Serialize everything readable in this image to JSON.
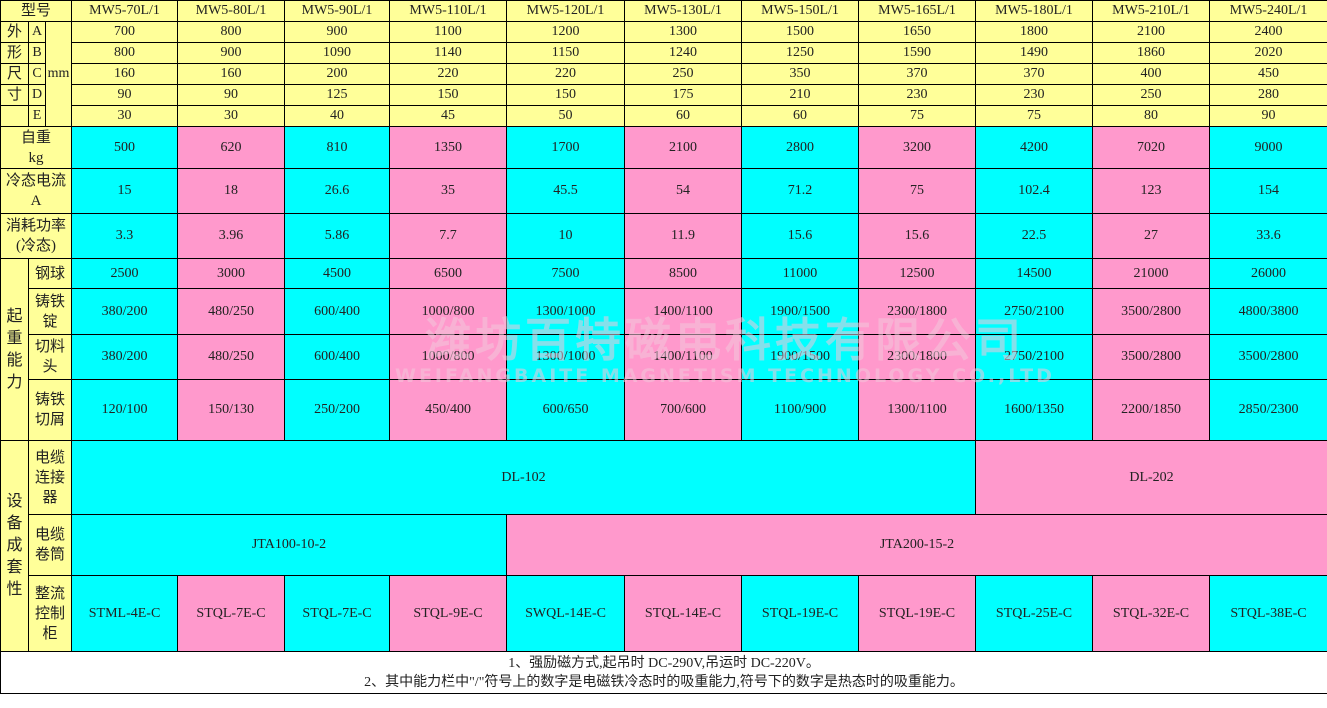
{
  "colors": {
    "label": "#FFFF99",
    "cyan": "#00FFFF",
    "pink": "#FF99CC"
  },
  "header": {
    "label": "型号",
    "models": [
      "MW5-70L/1",
      "MW5-80L/1",
      "MW5-90L/1",
      "MW5-110L/1",
      "MW5-120L/1",
      "MW5-130L/1",
      "MW5-150L/1",
      "MW5-165L/1",
      "MW5-180L/1",
      "MW5-210L/1",
      "MW5-240L/1"
    ]
  },
  "dimensions": {
    "group_chars": [
      "外",
      "形",
      "尺",
      "寸",
      ""
    ],
    "unit": "mm",
    "rows": [
      {
        "label": "A",
        "values": [
          "700",
          "800",
          "900",
          "1100",
          "1200",
          "1300",
          "1500",
          "1650",
          "1800",
          "2100",
          "2400"
        ]
      },
      {
        "label": "B",
        "values": [
          "800",
          "900",
          "1090",
          "1140",
          "1150",
          "1240",
          "1250",
          "1590",
          "1490",
          "1860",
          "2020"
        ]
      },
      {
        "label": "C",
        "values": [
          "160",
          "160",
          "200",
          "220",
          "220",
          "250",
          "350",
          "370",
          "370",
          "400",
          "450"
        ]
      },
      {
        "label": "D",
        "values": [
          "90",
          "90",
          "125",
          "150",
          "150",
          "175",
          "210",
          "230",
          "230",
          "250",
          "280"
        ]
      },
      {
        "label": "E",
        "values": [
          "30",
          "30",
          "40",
          "45",
          "50",
          "60",
          "60",
          "75",
          "75",
          "80",
          "90"
        ]
      }
    ]
  },
  "specs": [
    {
      "label": "自重",
      "unit": "kg",
      "values": [
        "500",
        "620",
        "810",
        "1350",
        "1700",
        "2100",
        "2800",
        "3200",
        "4200",
        "7020",
        "9000"
      ]
    },
    {
      "label": "冷态电流",
      "unit": "A",
      "values": [
        "15",
        "18",
        "26.6",
        "35",
        "45.5",
        "54",
        "71.2",
        "75",
        "102.4",
        "123",
        "154"
      ]
    },
    {
      "label": "消耗功率",
      "unit": "(冷态)",
      "values": [
        "3.3",
        "3.96",
        "5.86",
        "7.7",
        "10",
        "11.9",
        "15.6",
        "15.6",
        "22.5",
        "27",
        "33.6"
      ]
    }
  ],
  "lifting": {
    "group_label": "起重能力",
    "rows": [
      {
        "label": "钢球",
        "values": [
          "2500",
          "3000",
          "4500",
          "6500",
          "7500",
          "8500",
          "11000",
          "12500",
          "14500",
          "21000",
          "26000"
        ]
      },
      {
        "label": "铸铁锭",
        "values": [
          "380/200",
          "480/250",
          "600/400",
          "1000/800",
          "1300/1000",
          "1400/1100",
          "1900/1500",
          "2300/1800",
          "2750/2100",
          "3500/2800",
          "4800/3800"
        ]
      },
      {
        "label": "切料头",
        "values": [
          "380/200",
          "480/250",
          "600/400",
          "1000/800",
          "1300/1000",
          "1400/1100",
          "1900/1500",
          "2300/1800",
          "2750/2100",
          "3500/2800",
          "3500/2800"
        ]
      },
      {
        "label": "铸铁切屑",
        "values": [
          "120/100",
          "150/130",
          "250/200",
          "450/400",
          "600/650",
          "700/600",
          "1100/900",
          "1300/1100",
          "1600/1350",
          "2200/1850",
          "2850/2300"
        ]
      }
    ]
  },
  "equipment": {
    "group_label": "设备成套性",
    "connector": {
      "label": "电缆连接器",
      "spans": [
        {
          "value": "DL-102",
          "cols": 8,
          "color": "cyan"
        },
        {
          "value": "DL-202",
          "cols": 3,
          "color": "pink"
        }
      ]
    },
    "reel": {
      "label": "电缆卷筒",
      "spans": [
        {
          "value": "JTA100-10-2",
          "cols": 4,
          "color": "cyan"
        },
        {
          "value": "JTA200-15-2",
          "cols": 7,
          "color": "pink"
        }
      ]
    },
    "rectifier": {
      "label": "整流控制柜",
      "values": [
        "STML-4E-C",
        "STQL-7E-C",
        "STQL-7E-C",
        "STQL-9E-C",
        "SWQL-14E-C",
        "STQL-14E-C",
        "STQL-19E-C",
        "STQL-19E-C",
        "STQL-25E-C",
        "STQL-32E-C",
        "STQL-38E-C"
      ]
    }
  },
  "notes": [
    "1、强励磁方式,起吊时 DC-290V,吊运时 DC-220V。",
    "2、其中能力栏中\"/\"符号上的数字是电磁铁冷态时的吸重能力,符号下的数字是热态时的吸重能力。"
  ],
  "watermark": {
    "cn": "潍坊百特磁电科技有限公司",
    "en": "WEIFANGBAITE MAGNETISM TECHNOLOGY CO.,LTD"
  }
}
